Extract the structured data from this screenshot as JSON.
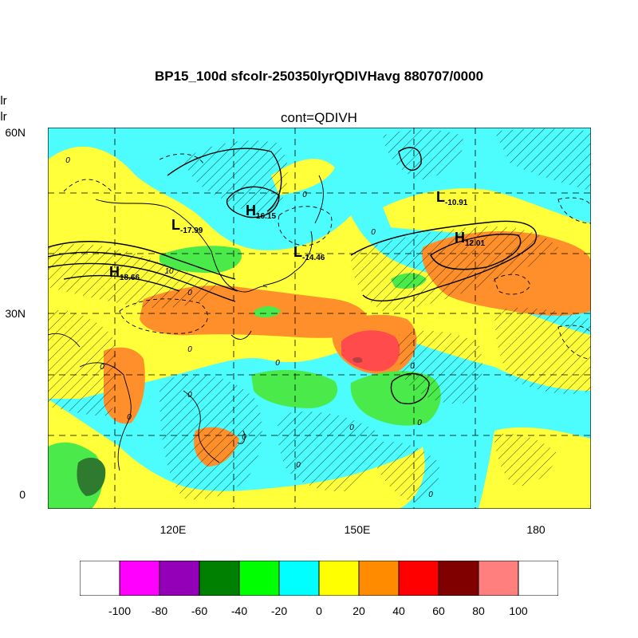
{
  "title": "BP15_100d sfcolr-250350lyrQDIVHavg  880707/0000",
  "subtitle": "cont=QDIVH",
  "side_labels": [
    "olr",
    "olr"
  ],
  "lat_labels": [
    "60N",
    "30N",
    "0"
  ],
  "lon_labels": [
    "120E",
    "150E",
    "180"
  ],
  "pressure_centers": [
    {
      "type": "L",
      "value": "-17.99"
    },
    {
      "type": "H",
      "value": "16.15"
    },
    {
      "type": "H",
      "value": "18.66"
    },
    {
      "type": "L",
      "value": "-14.46"
    },
    {
      "type": "L",
      "value": "-10.91"
    },
    {
      "type": "H",
      "value": "12.01"
    }
  ],
  "contour_labels": [
    "0",
    "10"
  ],
  "colorbar": {
    "labels": [
      "-100",
      "-80",
      "-60",
      "-40",
      "-20",
      "0",
      "20",
      "40",
      "60",
      "80",
      "100"
    ],
    "colors": [
      "#ffffff",
      "#ff00ff",
      "#9400b8",
      "#008000",
      "#00ff00",
      "#00ffff",
      "#ffff00",
      "#ff8c00",
      "#ff0000",
      "#800000",
      "#ff7f7f",
      "#ffffff"
    ]
  },
  "palette": {
    "cyan": "#4dfcfc",
    "yellow": "#ffff3a",
    "orange": "#ff8f2a",
    "green": "#4aea4a",
    "red": "#ff4b4b",
    "dark_green": "#2e7a2e"
  }
}
